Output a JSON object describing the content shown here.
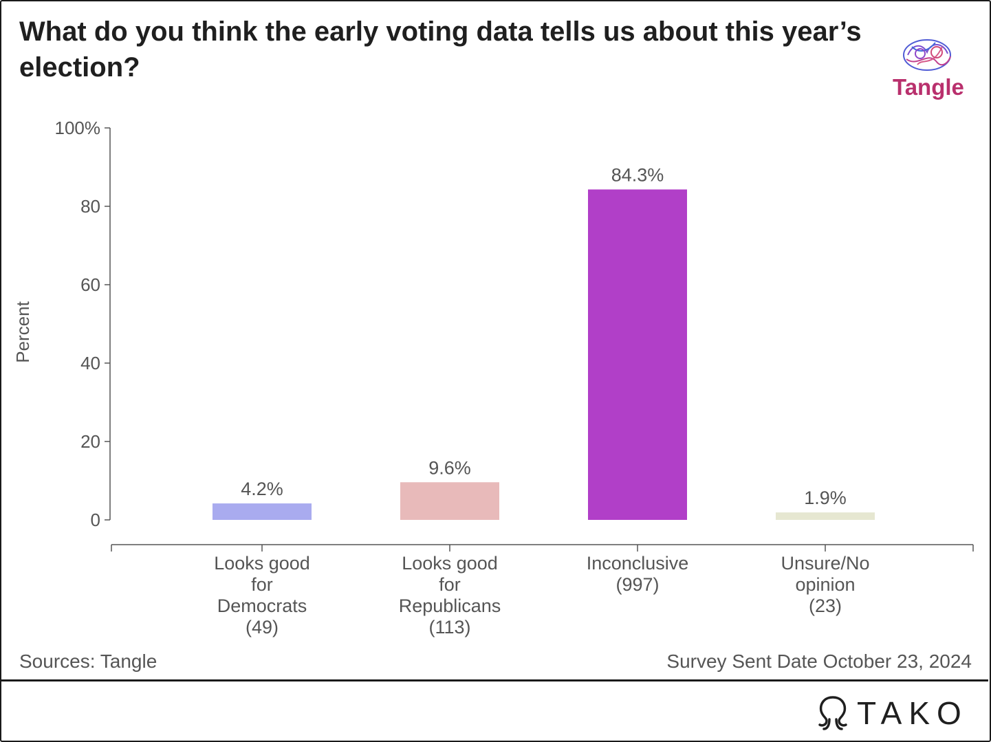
{
  "header": {
    "title": "What do you think the early voting data tells us about this year’s election?",
    "brand": "Tangle"
  },
  "chart_data": {
    "type": "bar",
    "ylabel": "Percent",
    "ylim": [
      0,
      100
    ],
    "yticks": [
      {
        "value": 0,
        "label": "0"
      },
      {
        "value": 20,
        "label": "20"
      },
      {
        "value": 40,
        "label": "40"
      },
      {
        "value": 60,
        "label": "60"
      },
      {
        "value": 80,
        "label": "80"
      },
      {
        "value": 100,
        "label": "100%"
      }
    ],
    "categories": [
      [
        "Looks good",
        "for",
        "Democrats",
        "(49)"
      ],
      [
        "Looks good",
        "for",
        "Republicans",
        "(113)"
      ],
      [
        "Inconclusive",
        "(997)"
      ],
      [
        "Unsure/No",
        "opinion",
        "(23)"
      ]
    ],
    "values": [
      4.2,
      9.6,
      84.3,
      1.9
    ],
    "value_labels": [
      "4.2%",
      "9.6%",
      "84.3%",
      "1.9%"
    ],
    "colors": [
      "#a9abef",
      "#e8baba",
      "#b13fc8",
      "#e6e7d1"
    ],
    "grid": false,
    "legend": "none"
  },
  "footer": {
    "source": "Sources: Tangle",
    "date_note": "Survey Sent Date October 23, 2024",
    "tako_label": "TAKO"
  }
}
